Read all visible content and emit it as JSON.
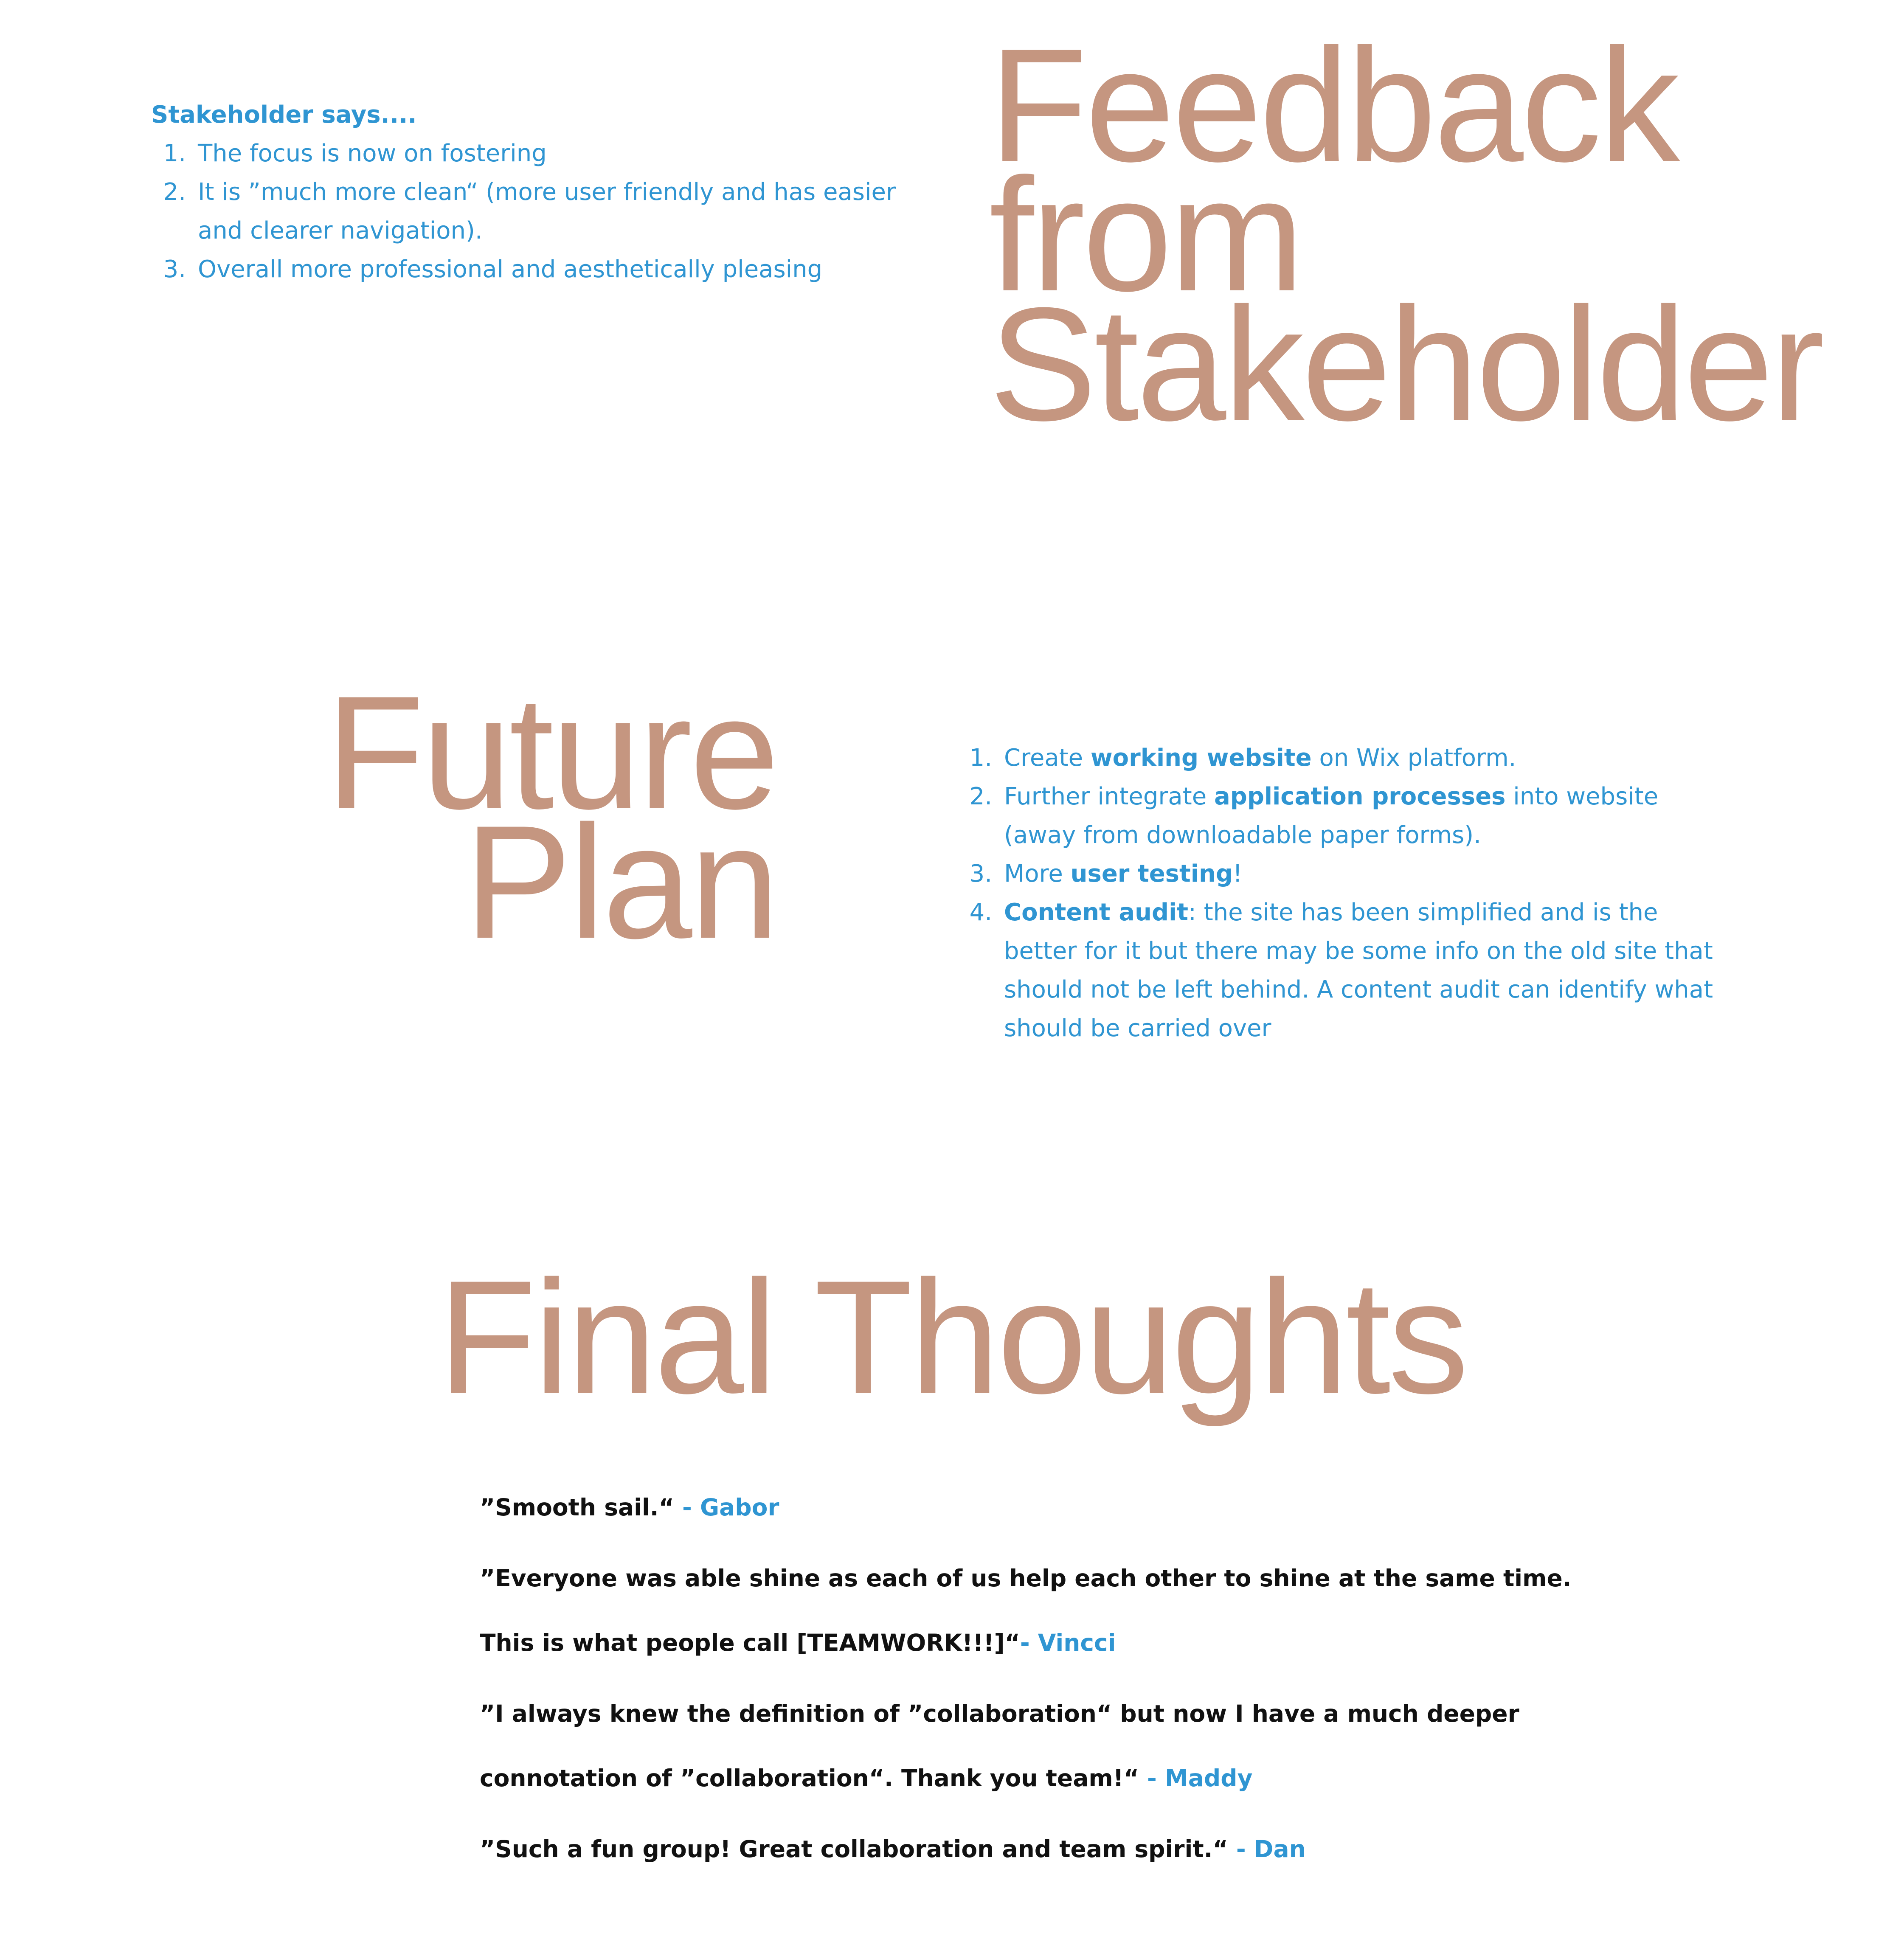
{
  "feedback_section": {
    "title_lines": [
      "Feedback",
      "from",
      "Stakeholder"
    ],
    "heading": "Stakeholder says....",
    "items": [
      {
        "num": "1.",
        "text": "The focus is now on fostering"
      },
      {
        "num": "2.",
        "text": "It is ”much more clean“ (more user friendly and has easier and clearer navigation)."
      },
      {
        "num": "3.",
        "text": "Overall more professional and aesthetically pleasing"
      }
    ]
  },
  "future_section": {
    "title_lines": [
      "Future",
      "Plan"
    ],
    "items": [
      {
        "num": "1.",
        "pre": "Create ",
        "bold": "working website",
        "post": " on Wix platform."
      },
      {
        "num": "2.",
        "pre": "Further integrate ",
        "bold": "application processes",
        "post": " into website (away from downloadable paper forms)."
      },
      {
        "num": "3.",
        "pre": "More ",
        "bold": "user testing",
        "post": "!"
      },
      {
        "num": "4.",
        "pre": "",
        "bold": "Content audit",
        "post": ": the site has been simplified and is the better for it but there may be some info on the old site that should not be left behind. A content audit can identify what should be carried over"
      }
    ]
  },
  "final_section": {
    "title": "Final Thoughts",
    "quotes": [
      {
        "lines": [
          "”Smooth sail.“ "
        ],
        "author": "- Gabor"
      },
      {
        "lines": [
          "”Everyone was able shine as each of us help each other to shine at the same time.",
          "This is what people call [TEAMWORK!!!]“"
        ],
        "author": "- Vincci"
      },
      {
        "lines": [
          "”I always knew the definition of ”collaboration“ but now I have a much deeper",
          "connotation of ”collaboration“. Thank you team!“ "
        ],
        "author": "- Maddy"
      },
      {
        "lines": [
          "”Such a fun group! Great collaboration and team spirit.“ "
        ],
        "author": "- Dan"
      }
    ]
  },
  "colors": {
    "heading_accent": "#c59680",
    "text_blue": "#2f95d2",
    "quote_text": "#111111"
  }
}
